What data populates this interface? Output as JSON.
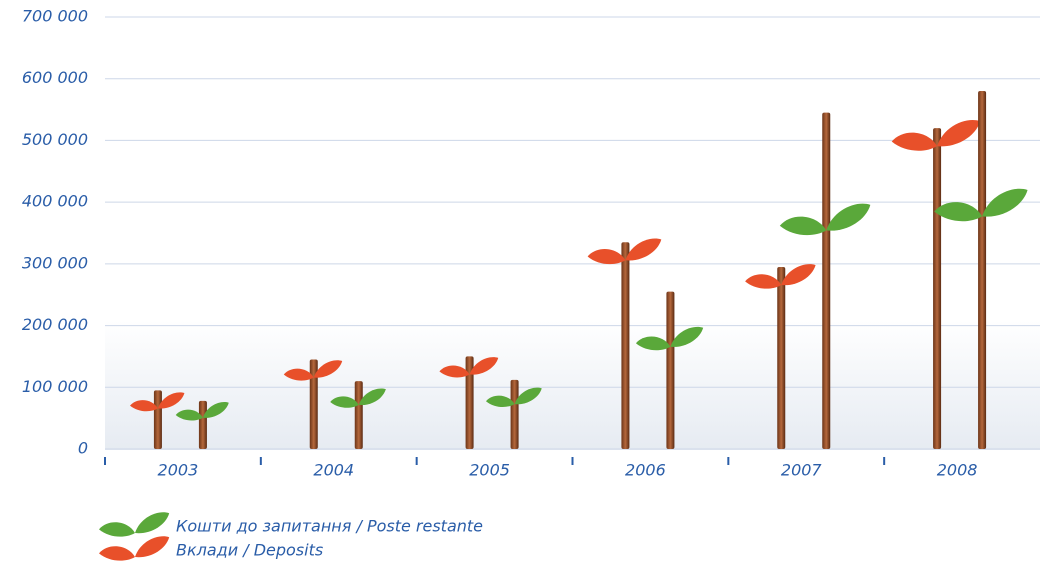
{
  "chart_data": {
    "type": "bar",
    "categories": [
      "2003",
      "2004",
      "2005",
      "2006",
      "2007",
      "2008"
    ],
    "series": [
      {
        "name": "Вклади / Deposits",
        "color": "#e8502a",
        "values": [
          95000,
          145000,
          150000,
          335000,
          295000,
          520000
        ]
      },
      {
        "name": "Кошти до запитання / Poste restante",
        "color": "#5aa83a",
        "values": [
          78000,
          110000,
          112000,
          255000,
          545000,
          580000
        ]
      }
    ],
    "ylim": [
      0,
      700000
    ],
    "yticks": [
      0,
      {
        "value": 100000,
        "label": "100 000"
      },
      {
        "value": 200000,
        "label": "200 000"
      },
      {
        "value": 300000,
        "label": "300 000"
      },
      {
        "value": 400000,
        "label": "400 000"
      },
      {
        "value": 500000,
        "label": "500 000"
      },
      {
        "value": 600000,
        "label": "600 000"
      },
      {
        "value": 700000,
        "label": "700 000"
      }
    ],
    "grid": true
  }
}
